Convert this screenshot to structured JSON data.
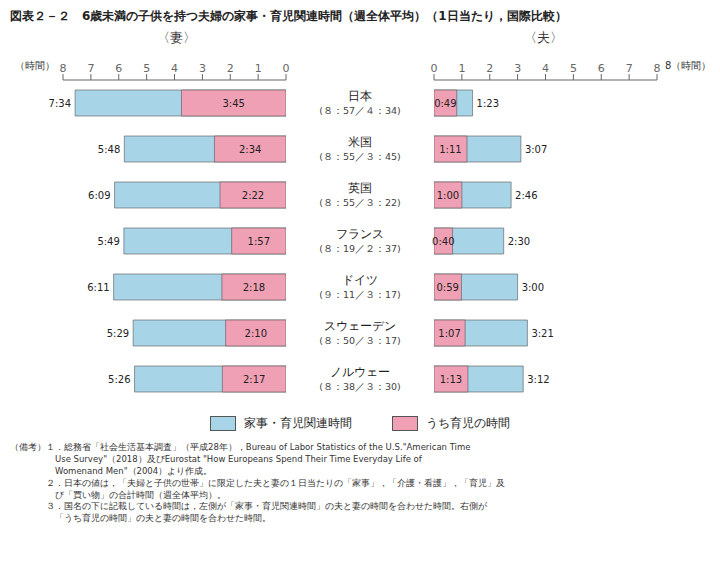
{
  "title": "図表２－２　6歳未満の子供を持つ夫婦の家事・育児関連時間（週全体平均）（1日当たり，国際比較）",
  "category_subtitles": [
    "(８：57／４：34)",
    "(８：55／３：45)",
    "(８：55／３：22)",
    "(８：19／２：37)",
    "(９：11／３：17)",
    "(８：50／３：17)",
    "(８：38／３：30)"
  ],
  "notes": [
    "（備考）１．総務省「社会生活基本調査」（平成28年），Bureau of Labor Statistics of the U.S.\"American Time",
    "　　　　　Use Survey\"（2018）及びEurostat \"How Europeans Spend Their Time Everyday Life of",
    "　　　　　Womenand Men\"（2004）より作成。",
    "　　　　２．日本の値は，「夫婦と子供の世帯」に限定した夫と妻の１日当たりの「家事」，「介護・看護」，「育児」及",
    "　　　　　び「買い物」の合計時間（週全体平均）。",
    "　　　　３．国名の下に記載している時間は，左側が「家事・育児関連時間」の夫と妻の時間を合わせた時間。右側が",
    "　　　　　「うち育児の時間」の夫と妻の時間を合わせた時間。"
  ],
  "chart_data": [
    {
      "type": "bar",
      "orientation": "horizontal",
      "title": "〈妻〉",
      "xlabel": "（時間）",
      "categories": [
        "日本",
        "米国",
        "英国",
        "フランス",
        "ドイツ",
        "スウェーデン",
        "ノルウェー"
      ],
      "xlim": [
        8,
        0
      ],
      "xticks": [
        0,
        1,
        2,
        3,
        4,
        5,
        6,
        7,
        8
      ],
      "grid": false,
      "legend": "bottom",
      "data_labels": true,
      "series": [
        {
          "name": "家事・育児関連時間",
          "color": "#a8d4e8",
          "values": [
            7.566666666666666,
            5.8,
            6.15,
            5.816666666666666,
            6.183333333333334,
            5.483333333333333,
            5.433333333333334
          ],
          "value_labels": [
            "7:34",
            "5:48",
            "6:09",
            "5:49",
            "6:11",
            "5:29",
            "5:26"
          ]
        },
        {
          "name": "うち育児の時間",
          "color": "#f0a0b4",
          "values": [
            3.75,
            2.566666666666667,
            2.3666666666666667,
            1.95,
            2.3,
            2.1666666666666665,
            2.283333333333333
          ],
          "value_labels": [
            "3:45",
            "2:34",
            "2:22",
            "1:57",
            "2:18",
            "2:10",
            "2:17"
          ]
        }
      ]
    },
    {
      "type": "bar",
      "orientation": "horizontal",
      "title": "〈夫〉",
      "xlabel": "8（時間）",
      "categories": [
        "日本",
        "米国",
        "英国",
        "フランス",
        "ドイツ",
        "スウェーデン",
        "ノルウェー"
      ],
      "xlim": [
        0,
        8
      ],
      "xticks": [
        0,
        1,
        2,
        3,
        4,
        5,
        6,
        7,
        8
      ],
      "grid": false,
      "data_labels": true,
      "series": [
        {
          "name": "家事・育児関連時間",
          "color": "#a8d4e8",
          "values": [
            1.3833333333333333,
            3.1166666666666667,
            2.7666666666666666,
            2.5,
            3,
            3.35,
            3.2
          ],
          "value_labels": [
            "1:23",
            "3:07",
            "2:46",
            "2:30",
            "3:00",
            "3:21",
            "3:12"
          ]
        },
        {
          "name": "うち育児の時間",
          "color": "#f0a0b4",
          "values": [
            0.8166666666666667,
            1.1833333333333333,
            1,
            0.6666666666666666,
            0.9833333333333333,
            1.1166666666666667,
            1.2166666666666666
          ],
          "value_labels": [
            "0:49",
            "1:11",
            "1:00",
            "0:40",
            "0:59",
            "1:07",
            "1:13"
          ]
        }
      ]
    }
  ]
}
